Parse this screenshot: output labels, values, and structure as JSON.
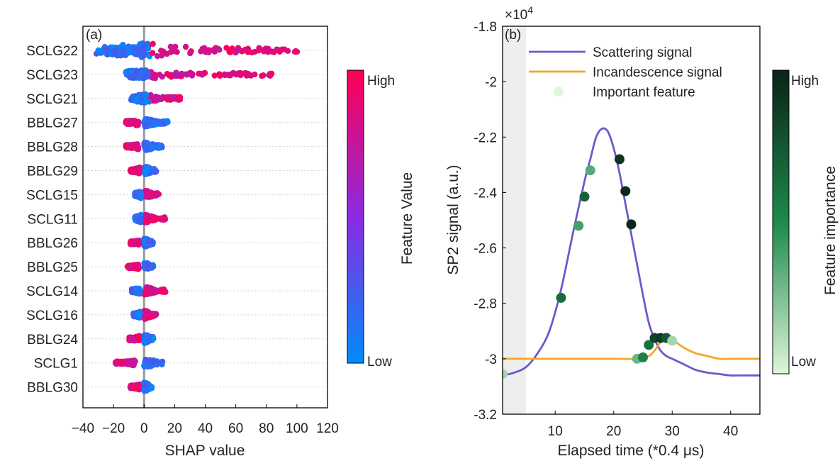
{
  "chart_data": [
    {
      "type": "scatter",
      "panel_label": "(a)",
      "xlabel": "SHAP value",
      "ylabel": "",
      "xlim": [
        -40,
        120
      ],
      "xticks": [
        -40,
        -20,
        0,
        20,
        40,
        60,
        80,
        100,
        120
      ],
      "x_tick_labels": [
        "−40",
        "−20",
        "0",
        "20",
        "40",
        "60",
        "80",
        "100",
        "120"
      ],
      "features": [
        "SCLG22",
        "SCLG23",
        "SCLG21",
        "BBLG27",
        "BBLG28",
        "BBLG29",
        "SCLG15",
        "SCLG11",
        "BBLG26",
        "BBLG25",
        "SCLG14",
        "SCLG16",
        "BBLG24",
        "SCLG1",
        "BBLG30"
      ],
      "feature_shap_ranges": [
        {
          "min": -32,
          "max": 101
        },
        {
          "min": -13,
          "max": 85
        },
        {
          "min": -10,
          "max": 24
        },
        {
          "min": -12,
          "max": 16
        },
        {
          "min": -12,
          "max": 12
        },
        {
          "min": -9,
          "max": 8
        },
        {
          "min": -6,
          "max": 10
        },
        {
          "min": -6,
          "max": 14
        },
        {
          "min": -9,
          "max": 6
        },
        {
          "min": -11,
          "max": 6
        },
        {
          "min": -8,
          "max": 14
        },
        {
          "min": -7,
          "max": 8
        },
        {
          "min": -10,
          "max": 7
        },
        {
          "min": -19,
          "max": 14
        },
        {
          "min": -9,
          "max": 5
        }
      ],
      "colorbar": {
        "label": "Feature Value",
        "high_label": "High",
        "low_label": "Low",
        "high_color": "#ff0052",
        "mid_color": "#8a2be2",
        "low_color": "#008bfb"
      },
      "grid": false
    },
    {
      "type": "line",
      "panel_label": "(b)",
      "xlabel": "Elapsed time (*0.4 μs)",
      "ylabel": "SP2 signal (a.u.)",
      "y_exponent_label": "×10",
      "y_exponent_power": "4",
      "xlim": [
        1,
        45
      ],
      "ylim": [
        -3.2,
        -1.8
      ],
      "xticks": [
        10,
        20,
        30,
        40
      ],
      "yticks": [
        -3.2,
        -3,
        -2.8,
        -2.6,
        -2.4,
        -2.2,
        -2,
        -1.8
      ],
      "y_tick_labels": [
        "-3.2",
        "-3",
        "-2.8",
        "-2.6",
        "-2.4",
        "-2.2",
        "-2",
        "-1.8"
      ],
      "shaded_region_x": [
        1,
        5
      ],
      "series": [
        {
          "name": "Scattering signal",
          "color": "#6a5acd",
          "x": [
            1,
            3,
            5,
            7,
            9,
            11,
            13,
            15,
            16,
            17,
            18,
            19,
            20,
            21,
            22,
            23,
            24,
            25,
            26,
            27,
            28,
            29,
            30,
            31,
            32,
            34,
            36,
            38,
            40,
            42,
            45
          ],
          "y": [
            -3.06,
            -3.05,
            -3.03,
            -2.98,
            -2.9,
            -2.75,
            -2.55,
            -2.36,
            -2.28,
            -2.2,
            -2.17,
            -2.18,
            -2.24,
            -2.33,
            -2.44,
            -2.55,
            -2.66,
            -2.77,
            -2.87,
            -2.93,
            -2.97,
            -2.99,
            -3.0,
            -3.01,
            -3.02,
            -3.04,
            -3.05,
            -3.055,
            -3.06,
            -3.06,
            -3.06
          ]
        },
        {
          "name": "Incandescence signal",
          "color": "#f5a623",
          "x": [
            1,
            10,
            20,
            24,
            26,
            27,
            28,
            29,
            30,
            32,
            34,
            36,
            38,
            40,
            42,
            45
          ],
          "y": [
            -3.0,
            -3.0,
            -3.0,
            -3.0,
            -2.99,
            -2.97,
            -2.94,
            -2.92,
            -2.93,
            -2.96,
            -2.98,
            -2.99,
            -3.0,
            -3.0,
            -3.0,
            -3.0
          ]
        }
      ],
      "important_features": {
        "name": "Important feature",
        "points": [
          {
            "x": 1,
            "y": -3.055,
            "importance": 0.15
          },
          {
            "x": 11,
            "y": -2.78,
            "importance": 0.65
          },
          {
            "x": 14,
            "y": -2.52,
            "importance": 0.4
          },
          {
            "x": 15,
            "y": -2.415,
            "importance": 0.7
          },
          {
            "x": 16,
            "y": -2.32,
            "importance": 0.35
          },
          {
            "x": 21,
            "y": -2.28,
            "importance": 0.92
          },
          {
            "x": 22,
            "y": -2.395,
            "importance": 0.97
          },
          {
            "x": 23,
            "y": -2.515,
            "importance": 0.98
          },
          {
            "x": 24,
            "y": -3.0,
            "importance": 0.3
          },
          {
            "x": 25,
            "y": -2.995,
            "importance": 0.55
          },
          {
            "x": 26,
            "y": -2.95,
            "importance": 0.62
          },
          {
            "x": 27,
            "y": -2.925,
            "importance": 0.85
          },
          {
            "x": 28,
            "y": -2.925,
            "importance": 0.9
          },
          {
            "x": 29,
            "y": -2.925,
            "importance": 0.75
          },
          {
            "x": 30,
            "y": -2.935,
            "importance": 0.15
          }
        ]
      },
      "colorbar": {
        "label": "Feature importance",
        "high_label": "High",
        "low_label": "Low",
        "high_color": "#0b2317",
        "mid_color": "#1d8a4c",
        "low_color": "#dff5dc"
      },
      "legend_position": "top-left",
      "grid": false
    }
  ]
}
